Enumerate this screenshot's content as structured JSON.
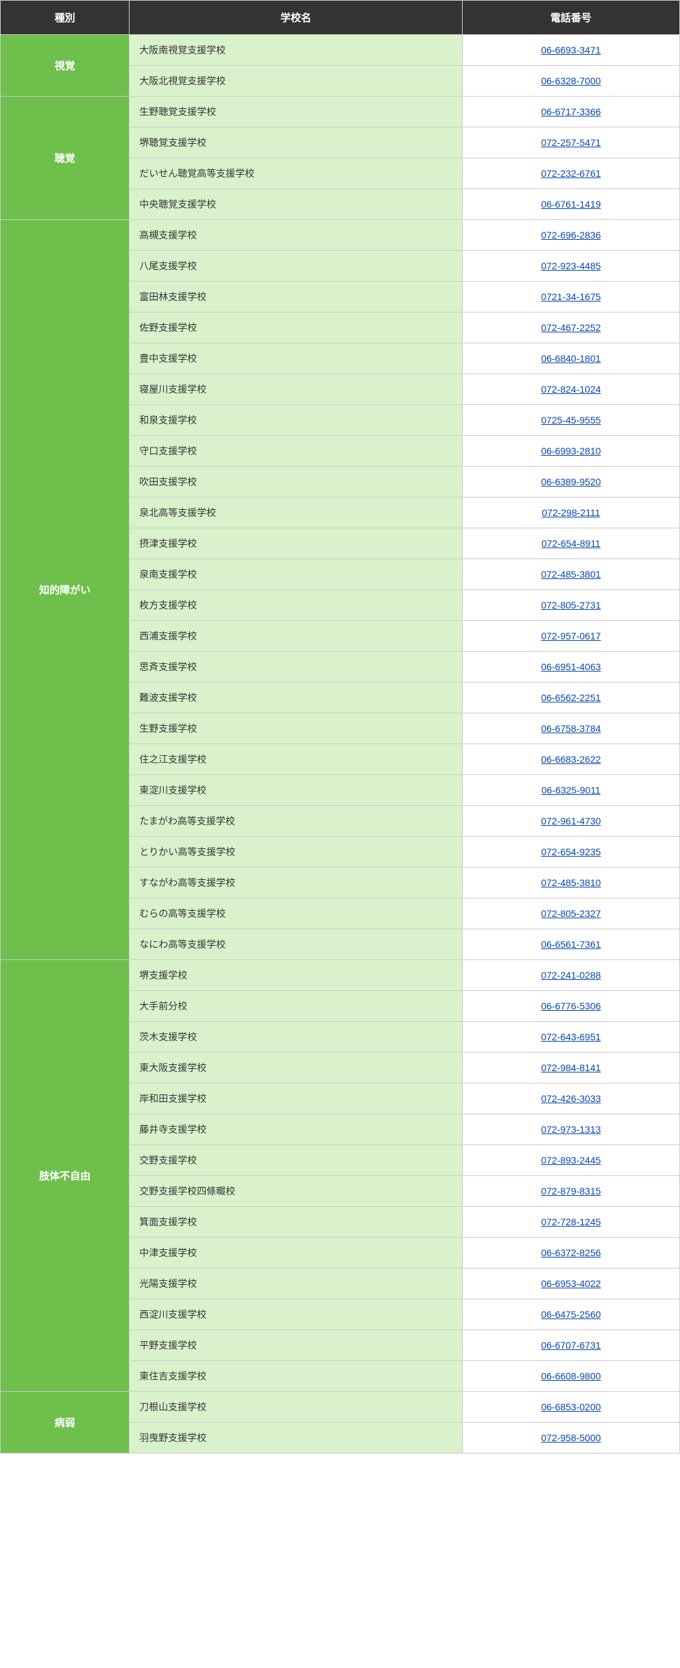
{
  "headers": {
    "type": "種別",
    "name": "学校名",
    "phone": "電話番号"
  },
  "colors": {
    "header_bg": "#333333",
    "header_fg": "#ffffff",
    "category_bg": "#6ebf4b",
    "category_fg": "#ffffff",
    "school_bg": "#d9f2cc",
    "phone_bg": "#ffffff",
    "link_color": "#0645ad",
    "border_color": "#cccccc"
  },
  "categories": [
    {
      "label": "視覚",
      "rows": [
        {
          "school": "大阪南視覚支援学校",
          "phone": "06-6693-3471"
        },
        {
          "school": "大阪北視覚支援学校",
          "phone": "06-6328-7000"
        }
      ]
    },
    {
      "label": "聴覚",
      "rows": [
        {
          "school": "生野聴覚支援学校",
          "phone": "06-6717-3366"
        },
        {
          "school": "堺聴覚支援学校",
          "phone": "072-257-5471"
        },
        {
          "school": "だいせん聴覚高等支援学校",
          "phone": "072-232-6761"
        },
        {
          "school": "中央聴覚支援学校",
          "phone": "06-6761-1419"
        }
      ]
    },
    {
      "label": "知的障がい",
      "rows": [
        {
          "school": "高槻支援学校",
          "phone": "072-696-2836"
        },
        {
          "school": "八尾支援学校",
          "phone": "072-923-4485"
        },
        {
          "school": "富田林支援学校",
          "phone": "0721-34-1675"
        },
        {
          "school": "佐野支援学校",
          "phone": "072-467-2252"
        },
        {
          "school": "豊中支援学校",
          "phone": "06-6840-1801"
        },
        {
          "school": "寝屋川支援学校",
          "phone": "072-824-1024"
        },
        {
          "school": "和泉支援学校",
          "phone": "0725-45-9555"
        },
        {
          "school": "守口支援学校",
          "phone": "06-6993-2810"
        },
        {
          "school": "吹田支援学校",
          "phone": "06-6389-9520"
        },
        {
          "school": "泉北高等支援学校",
          "phone": "072-298-2111"
        },
        {
          "school": "摂津支援学校",
          "phone": "072-654-8911"
        },
        {
          "school": "泉南支援学校",
          "phone": "072-485-3801"
        },
        {
          "school": "枚方支援学校",
          "phone": "072-805-2731"
        },
        {
          "school": "西浦支援学校",
          "phone": "072-957-0617"
        },
        {
          "school": "思斉支援学校",
          "phone": "06-6951-4063"
        },
        {
          "school": "難波支援学校",
          "phone": "06-6562-2251"
        },
        {
          "school": "生野支援学校",
          "phone": "06-6758-3784"
        },
        {
          "school": "住之江支援学校",
          "phone": "06-6683-2622"
        },
        {
          "school": "東淀川支援学校",
          "phone": "06-6325-9011"
        },
        {
          "school": "たまがわ高等支援学校",
          "phone": "072-961-4730"
        },
        {
          "school": "とりかい高等支援学校",
          "phone": "072-654-9235"
        },
        {
          "school": "すながわ高等支援学校",
          "phone": "072-485-3810"
        },
        {
          "school": "むらの高等支援学校",
          "phone": "072-805-2327"
        },
        {
          "school": "なにわ高等支援学校",
          "phone": "06-6561-7361"
        }
      ]
    },
    {
      "label": "肢体不自由",
      "rows": [
        {
          "school": "堺支援学校",
          "phone": "072-241-0288"
        },
        {
          "school": "大手前分校",
          "phone": "06-6776-5306"
        },
        {
          "school": "茨木支援学校",
          "phone": "072-643-6951"
        },
        {
          "school": "東大阪支援学校",
          "phone": "072-984-8141"
        },
        {
          "school": "岸和田支援学校",
          "phone": "072-426-3033"
        },
        {
          "school": "藤井寺支援学校",
          "phone": "072-973-1313"
        },
        {
          "school": "交野支援学校",
          "phone": "072-893-2445"
        },
        {
          "school": "交野支援学校四條畷校",
          "phone": "072-879-8315"
        },
        {
          "school": "箕面支援学校",
          "phone": "072-728-1245"
        },
        {
          "school": "中津支援学校",
          "phone": "06-6372-8256"
        },
        {
          "school": "光陽支援学校",
          "phone": "06-6953-4022"
        },
        {
          "school": "西淀川支援学校",
          "phone": "06-6475-2560"
        },
        {
          "school": "平野支援学校",
          "phone": "06-6707-6731"
        },
        {
          "school": "東住吉支援学校",
          "phone": "06-6608-9800"
        }
      ]
    },
    {
      "label": "病弱",
      "rows": [
        {
          "school": "刀根山支援学校",
          "phone": "06-6853-0200"
        },
        {
          "school": "羽曳野支援学校",
          "phone": "072-958-5000"
        }
      ]
    }
  ]
}
